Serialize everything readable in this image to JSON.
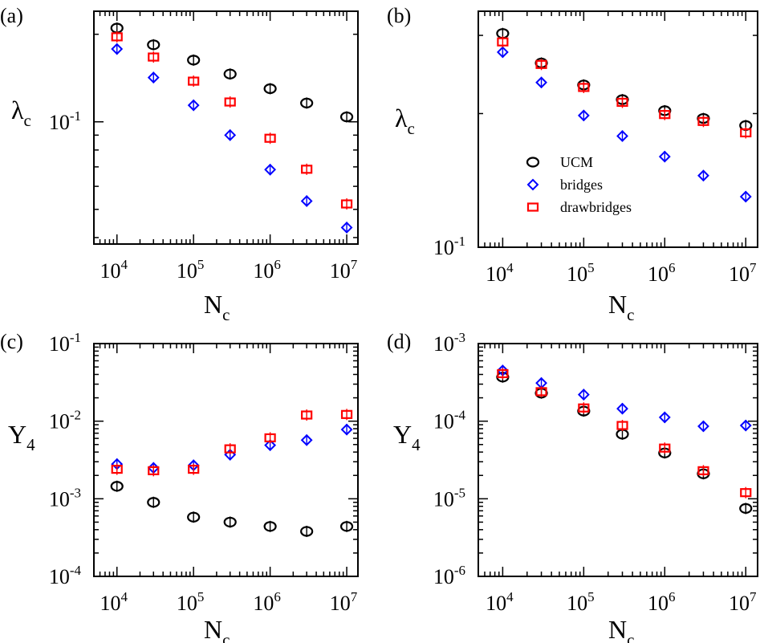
{
  "colors": {
    "UCM": "#000000",
    "bridges": "#0000ff",
    "drawbridges": "#ff0000"
  },
  "x_tick_labels": [
    {
      "base": "10",
      "exp": "4"
    },
    {
      "base": "10",
      "exp": "5"
    },
    {
      "base": "10",
      "exp": "6"
    },
    {
      "base": "10",
      "exp": "7"
    }
  ],
  "chart_data": [
    {
      "panel": "(a)",
      "type": "scatter",
      "xscale": "log",
      "yscale": "log",
      "xlim": [
        5000,
        14000000
      ],
      "ylim": [
        0.038,
        0.24
      ],
      "xlabel": {
        "main": "N",
        "sub": "c"
      },
      "ylabel": {
        "main": "λ",
        "sub": "c"
      },
      "y_tick_labels": [
        {
          "value": 0.1,
          "base": "10",
          "exp": "-1"
        }
      ],
      "legend": false,
      "series": [
        {
          "name": "UCM",
          "marker": "circle",
          "points": [
            {
              "x": 10000,
              "y": 0.21
            },
            {
              "x": 30000,
              "y": 0.184
            },
            {
              "x": 100000,
              "y": 0.163
            },
            {
              "x": 300000,
              "y": 0.146
            },
            {
              "x": 1000000,
              "y": 0.13
            },
            {
              "x": 3000000,
              "y": 0.116
            },
            {
              "x": 10000000,
              "y": 0.104
            }
          ]
        },
        {
          "name": "bridges",
          "marker": "diamond",
          "points": [
            {
              "x": 10000,
              "y": 0.178
            },
            {
              "x": 30000,
              "y": 0.142
            },
            {
              "x": 100000,
              "y": 0.114
            },
            {
              "x": 300000,
              "y": 0.09
            },
            {
              "x": 1000000,
              "y": 0.0685
            },
            {
              "x": 3000000,
              "y": 0.0534
            },
            {
              "x": 10000000,
              "y": 0.0433
            }
          ]
        },
        {
          "name": "drawbridges",
          "marker": "square",
          "points": [
            {
              "x": 10000,
              "y": 0.196
            },
            {
              "x": 30000,
              "y": 0.167
            },
            {
              "x": 100000,
              "y": 0.138
            },
            {
              "x": 300000,
              "y": 0.117
            },
            {
              "x": 1000000,
              "y": 0.0878
            },
            {
              "x": 3000000,
              "y": 0.0687
            },
            {
              "x": 10000000,
              "y": 0.0522
            }
          ]
        }
      ]
    },
    {
      "panel": "(b)",
      "type": "scatter",
      "xscale": "log",
      "yscale": "log",
      "xlim": [
        5000,
        14000000
      ],
      "ylim": [
        0.1,
        0.34
      ],
      "xlabel": {
        "main": "N",
        "sub": "c"
      },
      "ylabel": {
        "main": "λ",
        "sub": "c"
      },
      "y_tick_labels": [
        {
          "value": 0.1,
          "base": "10",
          "exp": "-1"
        }
      ],
      "legend": true,
      "legend_position": "center-right",
      "series": [
        {
          "name": "UCM",
          "marker": "circle",
          "points": [
            {
              "x": 10000,
              "y": 0.303
            },
            {
              "x": 30000,
              "y": 0.26
            },
            {
              "x": 100000,
              "y": 0.232
            },
            {
              "x": 300000,
              "y": 0.215
            },
            {
              "x": 1000000,
              "y": 0.203
            },
            {
              "x": 3000000,
              "y": 0.195
            },
            {
              "x": 10000000,
              "y": 0.188
            }
          ]
        },
        {
          "name": "bridges",
          "marker": "diamond",
          "points": [
            {
              "x": 10000,
              "y": 0.275
            },
            {
              "x": 30000,
              "y": 0.235
            },
            {
              "x": 100000,
              "y": 0.198
            },
            {
              "x": 300000,
              "y": 0.178
            },
            {
              "x": 1000000,
              "y": 0.16
            },
            {
              "x": 3000000,
              "y": 0.145
            },
            {
              "x": 10000000,
              "y": 0.13
            }
          ]
        },
        {
          "name": "drawbridges",
          "marker": "square",
          "points": [
            {
              "x": 10000,
              "y": 0.29
            },
            {
              "x": 30000,
              "y": 0.258
            },
            {
              "x": 100000,
              "y": 0.229
            },
            {
              "x": 300000,
              "y": 0.212
            },
            {
              "x": 1000000,
              "y": 0.199
            },
            {
              "x": 3000000,
              "y": 0.192
            },
            {
              "x": 10000000,
              "y": 0.181
            }
          ]
        }
      ]
    },
    {
      "panel": "(c)",
      "type": "scatter",
      "xscale": "log",
      "yscale": "log",
      "xlim": [
        5000,
        14000000
      ],
      "ylim": [
        0.0001,
        0.1
      ],
      "xlabel": {
        "main": "N",
        "sub": "c"
      },
      "ylabel": {
        "main": "Y",
        "sub": "4"
      },
      "y_tick_labels": [
        {
          "value": 0.0001,
          "base": "10",
          "exp": "-4"
        },
        {
          "value": 0.001,
          "base": "10",
          "exp": "-3"
        },
        {
          "value": 0.01,
          "base": "10",
          "exp": "-2"
        },
        {
          "value": 0.1,
          "base": "10",
          "exp": "-1"
        }
      ],
      "legend": false,
      "series": [
        {
          "name": "UCM",
          "marker": "circle",
          "points": [
            {
              "x": 10000,
              "y": 0.00145
            },
            {
              "x": 30000,
              "y": 0.0009
            },
            {
              "x": 100000,
              "y": 0.00058
            },
            {
              "x": 300000,
              "y": 0.0005
            },
            {
              "x": 1000000,
              "y": 0.00044
            },
            {
              "x": 3000000,
              "y": 0.00038
            },
            {
              "x": 10000000,
              "y": 0.00044
            }
          ]
        },
        {
          "name": "bridges",
          "marker": "diamond",
          "points": [
            {
              "x": 10000,
              "y": 0.0028
            },
            {
              "x": 30000,
              "y": 0.0025
            },
            {
              "x": 100000,
              "y": 0.0027
            },
            {
              "x": 300000,
              "y": 0.0037
            },
            {
              "x": 1000000,
              "y": 0.0049
            },
            {
              "x": 3000000,
              "y": 0.0057
            },
            {
              "x": 10000000,
              "y": 0.0078
            }
          ]
        },
        {
          "name": "drawbridges",
          "marker": "square",
          "points": [
            {
              "x": 10000,
              "y": 0.0024
            },
            {
              "x": 30000,
              "y": 0.0023
            },
            {
              "x": 100000,
              "y": 0.0024
            },
            {
              "x": 300000,
              "y": 0.0044
            },
            {
              "x": 1000000,
              "y": 0.0061
            },
            {
              "x": 3000000,
              "y": 0.012
            },
            {
              "x": 10000000,
              "y": 0.0122
            }
          ]
        }
      ]
    },
    {
      "panel": "(d)",
      "type": "scatter",
      "xscale": "log",
      "yscale": "log",
      "xlim": [
        5000,
        14000000
      ],
      "ylim": [
        1e-06,
        0.001
      ],
      "xlabel": {
        "main": "N",
        "sub": "c"
      },
      "ylabel": {
        "main": "Y",
        "sub": "4"
      },
      "y_tick_labels": [
        {
          "value": 1e-06,
          "base": "10",
          "exp": "-6"
        },
        {
          "value": 1e-05,
          "base": "10",
          "exp": "-5"
        },
        {
          "value": 0.0001,
          "base": "10",
          "exp": "-4"
        },
        {
          "value": 0.001,
          "base": "10",
          "exp": "-3"
        }
      ],
      "legend": false,
      "series": [
        {
          "name": "UCM",
          "marker": "circle",
          "points": [
            {
              "x": 10000,
              "y": 0.00037
            },
            {
              "x": 30000,
              "y": 0.00023
            },
            {
              "x": 100000,
              "y": 0.000135
            },
            {
              "x": 300000,
              "y": 6.8e-05
            },
            {
              "x": 1000000,
              "y": 3.9e-05
            },
            {
              "x": 3000000,
              "y": 2.1e-05
            },
            {
              "x": 10000000,
              "y": 7.5e-06
            }
          ]
        },
        {
          "name": "bridges",
          "marker": "diamond",
          "points": [
            {
              "x": 10000,
              "y": 0.00045
            },
            {
              "x": 30000,
              "y": 0.00031
            },
            {
              "x": 100000,
              "y": 0.00022
            },
            {
              "x": 300000,
              "y": 0.000145
            },
            {
              "x": 1000000,
              "y": 0.000112
            },
            {
              "x": 3000000,
              "y": 8.6e-05
            },
            {
              "x": 10000000,
              "y": 8.8e-05
            }
          ]
        },
        {
          "name": "drawbridges",
          "marker": "square",
          "points": [
            {
              "x": 10000,
              "y": 0.00041
            },
            {
              "x": 30000,
              "y": 0.00024
            },
            {
              "x": 100000,
              "y": 0.000148
            },
            {
              "x": 300000,
              "y": 8.8e-05
            },
            {
              "x": 1000000,
              "y": 4.5e-05
            },
            {
              "x": 3000000,
              "y": 2.3e-05
            },
            {
              "x": 10000000,
              "y": 1.2e-05
            }
          ]
        }
      ]
    }
  ]
}
